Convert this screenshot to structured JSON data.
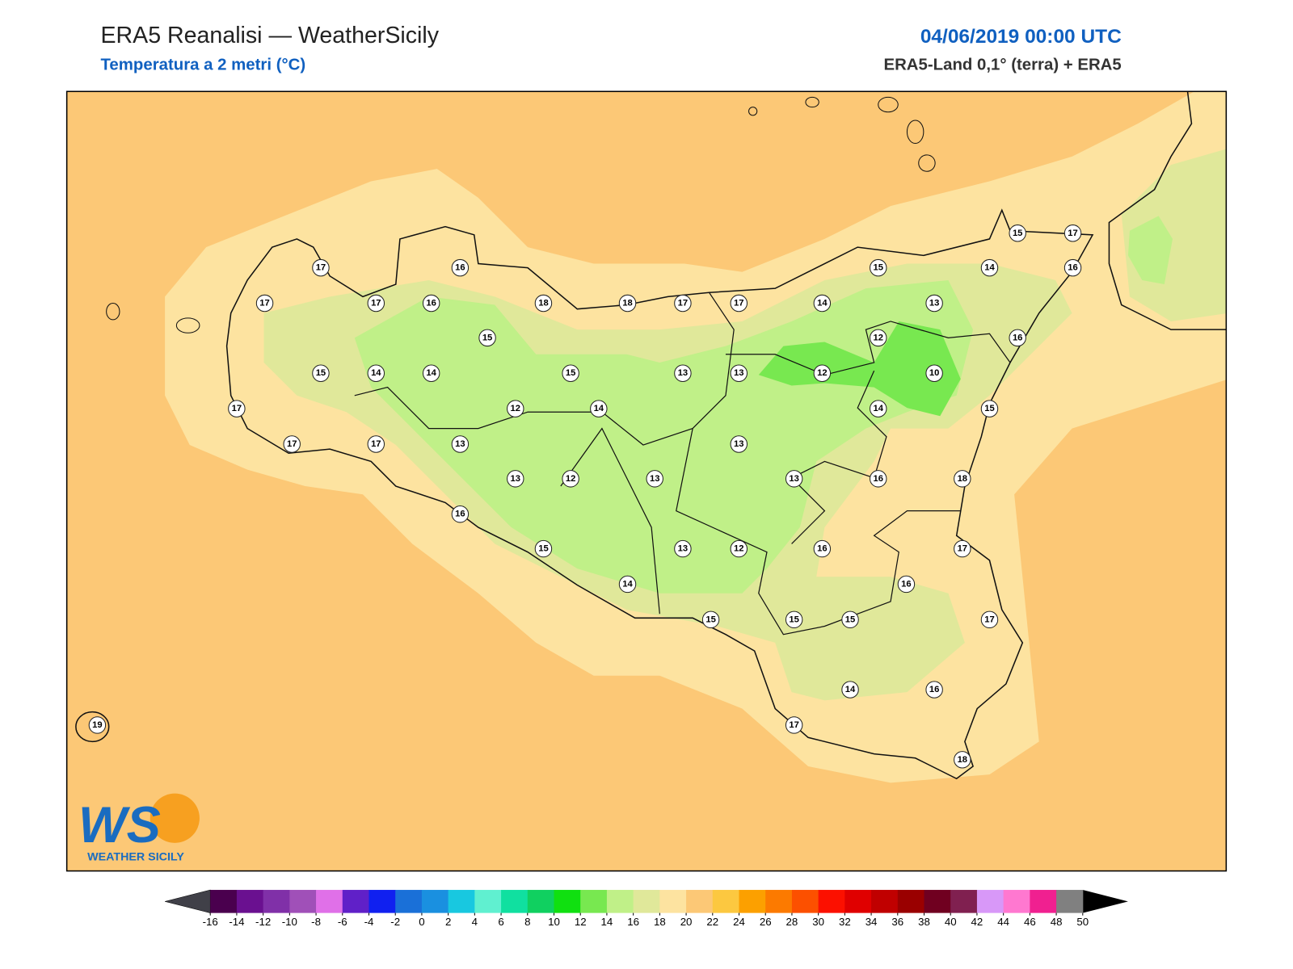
{
  "header": {
    "title": "ERA5 Reanalisi — WeatherSicily",
    "subtitle": "Temperatura a 2 metri (°C)",
    "date": "04/06/2019 00:00 UTC",
    "source": "ERA5-Land 0,1° (terra) + ERA5"
  },
  "stations": [
    17,
    16,
    17,
    17,
    16,
    18,
    18,
    17,
    17,
    14,
    15,
    13,
    14,
    15,
    17,
    16,
    15,
    12,
    16,
    15,
    14,
    14,
    15,
    13,
    13,
    12,
    10,
    17,
    12,
    14,
    14,
    15,
    17,
    17,
    13,
    13,
    13,
    12,
    13,
    13,
    16,
    18,
    16,
    15,
    13,
    12,
    16,
    17,
    14,
    16,
    15,
    15,
    15,
    17,
    14,
    16,
    17,
    19,
    18
  ],
  "logo": {
    "mark": "WS",
    "name": "WEATHER SICILY"
  },
  "colorbar": {
    "ticks": [
      -16,
      -14,
      -12,
      -10,
      -8,
      -6,
      -4,
      -2,
      0,
      2,
      4,
      6,
      8,
      10,
      12,
      14,
      16,
      18,
      20,
      22,
      24,
      26,
      28,
      30,
      32,
      34,
      36,
      38,
      40,
      42,
      44,
      46,
      48,
      50
    ],
    "colors": [
      "#4a004e",
      "#6a1090",
      "#8030a8",
      "#a050b8",
      "#e070e8",
      "#6020c8",
      "#1020f0",
      "#1a70d8",
      "#1a90e0",
      "#18c8e0",
      "#60f0d0",
      "#10e0a0",
      "#10d060",
      "#10e010",
      "#78e850",
      "#c0f088",
      "#e0e89a",
      "#fde3a0",
      "#fcc876",
      "#fcc840",
      "#fca000",
      "#fc7a00",
      "#fc5000",
      "#fc1000",
      "#e00000",
      "#c00000",
      "#9a0000",
      "#700020",
      "#802050",
      "#d898f8",
      "#ff78d0",
      "#f02090",
      "#808080",
      "#404040"
    ],
    "under_color": "#404048",
    "over_color": "#000000"
  }
}
